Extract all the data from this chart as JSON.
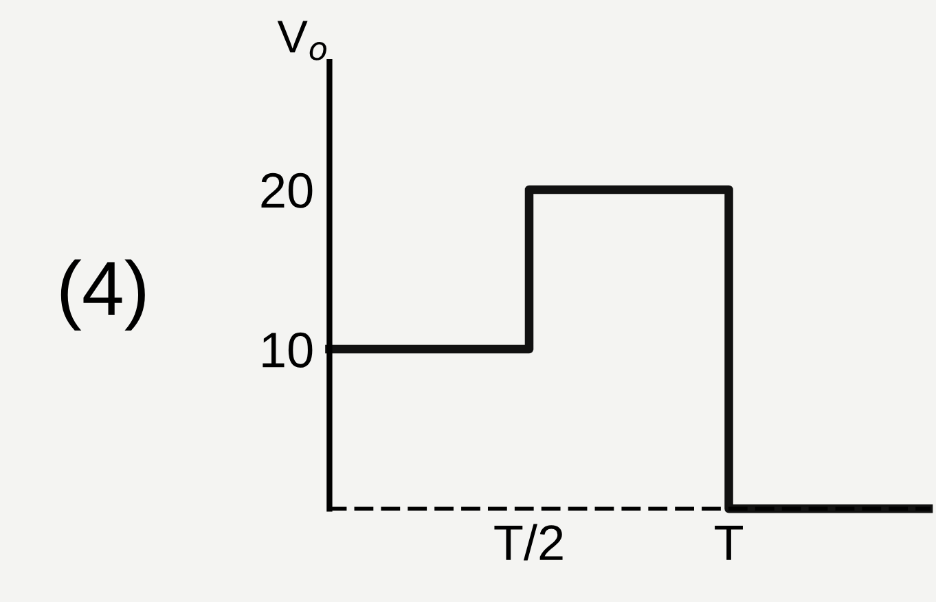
{
  "chart_data": {
    "type": "step",
    "ylabel": "V$_{o}$",
    "annotations": [
      "(4)"
    ],
    "categories": [
      null,
      "T/2",
      "T",
      null
    ],
    "series": [
      {
        "color": "#111111",
        "values": [
          10,
          20,
          0,
          0
        ]
      }
    ],
    "ylim": [
      0,
      28
    ],
    "yticks": [
      10,
      20
    ],
    "grid": false,
    "legend": false
  }
}
